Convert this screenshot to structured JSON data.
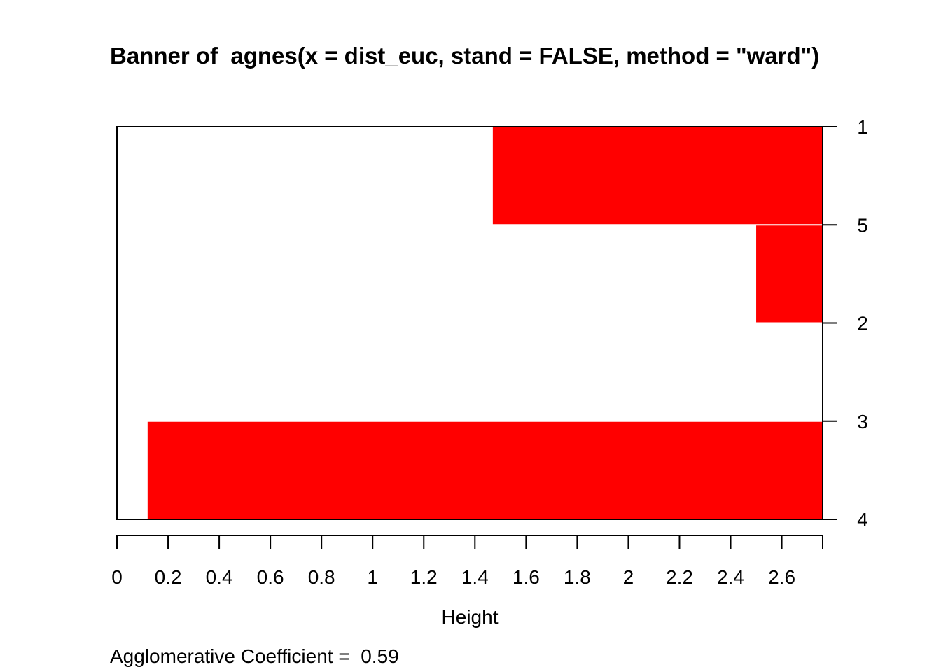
{
  "chart_data": {
    "type": "bar",
    "orientation": "horizontal",
    "title": "Banner of  agnes(x = dist_euc, stand = FALSE, method = \"ward\")",
    "xlabel": "Height",
    "ylabel": "",
    "xlim": [
      0,
      2.76
    ],
    "x_ticks": [
      0,
      0.2,
      0.4,
      0.6,
      0.8,
      1,
      1.2,
      1.4,
      1.6,
      1.8,
      2,
      2.2,
      2.4,
      2.6
    ],
    "x_tick_labels": [
      "0",
      "0.2",
      "0.4",
      "0.6",
      "0.8",
      "1",
      "1.2",
      "1.4",
      "1.6",
      "1.8",
      "2",
      "2.2",
      "2.4",
      "2.6"
    ],
    "order_labels": [
      "1",
      "5",
      "2",
      "3",
      "4"
    ],
    "merge_heights": [
      1.47,
      2.5,
      2.76,
      0.12
    ],
    "bar_color": "#ff0000",
    "grid": false,
    "agglomerative_coefficient": 0.59
  },
  "footer": {
    "text": "Agglomerative Coefficient =  0.59"
  }
}
